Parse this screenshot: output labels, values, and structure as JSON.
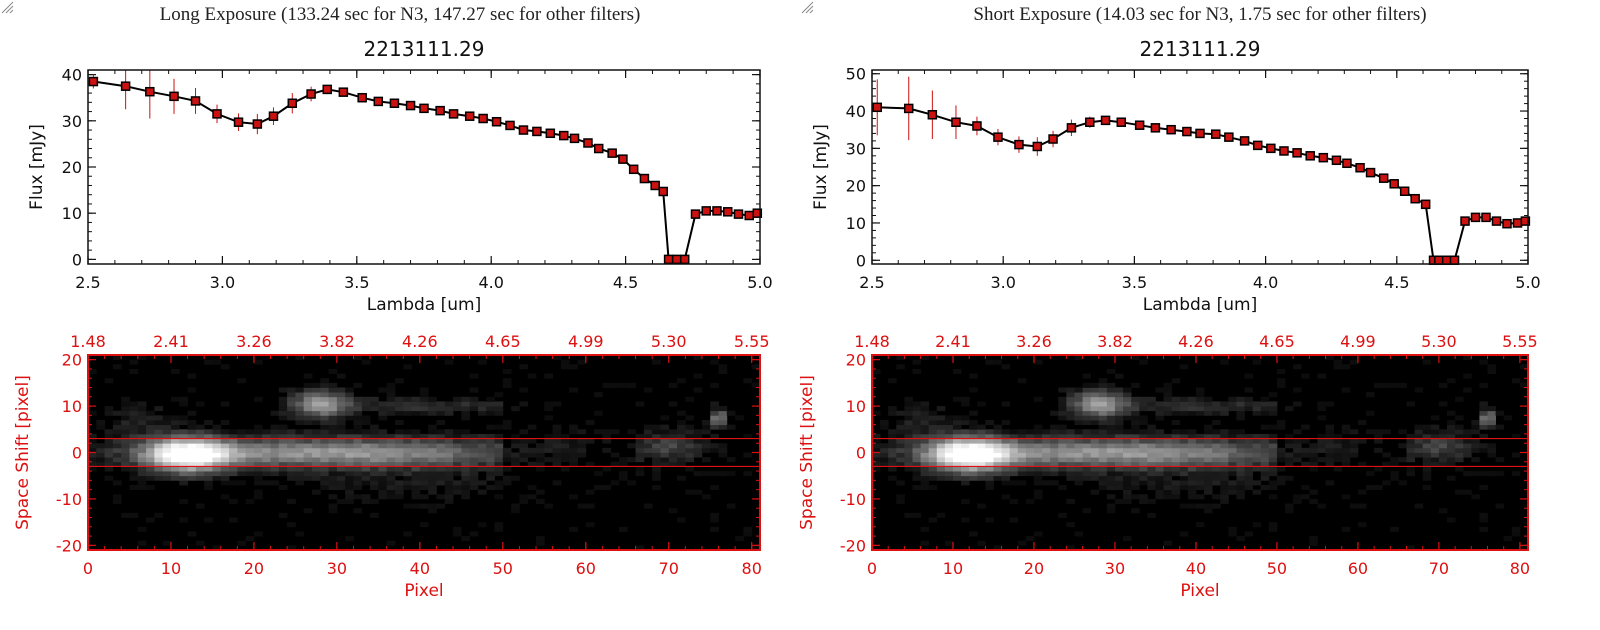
{
  "colors": {
    "accent": "#dd1111",
    "axis": "#111111",
    "marker_fill": "#cc1111",
    "marker_edge": "#000000"
  },
  "panels": [
    {
      "id": "long",
      "caption": "Long Exposure (133.24 sec for N3, 147.27 sec for other filters)"
    },
    {
      "id": "short",
      "caption": "Short Exposure (14.03 sec for N3, 1.75 sec for other filters)"
    }
  ],
  "chart_data": [
    {
      "type": "line",
      "title": "2213111.29",
      "xlabel": "Lambda [um]",
      "ylabel": "Flux [mJy]",
      "xlim": [
        2.5,
        5.0
      ],
      "ylim": [
        -1,
        41
      ],
      "xticks": [
        2.5,
        3.0,
        3.5,
        4.0,
        4.5,
        5.0
      ],
      "yticks": [
        0,
        10,
        20,
        30,
        40
      ],
      "x": [
        2.52,
        2.64,
        2.73,
        2.82,
        2.9,
        2.98,
        3.06,
        3.13,
        3.19,
        3.26,
        3.33,
        3.39,
        3.45,
        3.52,
        3.58,
        3.64,
        3.7,
        3.75,
        3.81,
        3.86,
        3.92,
        3.97,
        4.02,
        4.07,
        4.12,
        4.17,
        4.22,
        4.27,
        4.31,
        4.36,
        4.4,
        4.45,
        4.49,
        4.53,
        4.57,
        4.61,
        4.64,
        4.66,
        4.69,
        4.72,
        4.76,
        4.8,
        4.84,
        4.88,
        4.92,
        4.96,
        4.99
      ],
      "y": [
        38.5,
        37.5,
        36.3,
        35.3,
        34.3,
        31.5,
        29.7,
        29.3,
        31.0,
        33.8,
        35.8,
        36.8,
        36.2,
        35.0,
        34.2,
        33.8,
        33.3,
        32.7,
        32.2,
        31.5,
        31.0,
        30.5,
        29.8,
        29.0,
        28.0,
        27.7,
        27.3,
        26.8,
        26.2,
        25.2,
        24.0,
        23.0,
        21.7,
        19.5,
        17.5,
        16.0,
        14.7,
        0.0,
        0.0,
        0.0,
        9.8,
        10.5,
        10.5,
        10.3,
        9.8,
        9.5,
        10.0
      ],
      "yerr": [
        1.5,
        5.0,
        5.8,
        3.8,
        2.8,
        2.0,
        1.9,
        2.2,
        1.9,
        2.2,
        1.6,
        0.8,
        0.6,
        0.5,
        0.5,
        0.5,
        0.4,
        0.4,
        0.4,
        0.4,
        0.4,
        0.4,
        0.4,
        0.4,
        0.4,
        0.4,
        0.4,
        0.4,
        0.4,
        0.4,
        0.4,
        0.4,
        0.4,
        0.4,
        0.4,
        0.4,
        0.4,
        0.4,
        0.4,
        0.4,
        0.4,
        0.4,
        0.4,
        0.4,
        0.4,
        0.4,
        0.4
      ]
    },
    {
      "type": "heatmap",
      "xlabel": "Pixel",
      "ylabel": "Space Shift [pixel]",
      "xlim": [
        0,
        81
      ],
      "ylim": [
        -21,
        21
      ],
      "xticks": [
        0,
        10,
        20,
        30,
        40,
        50,
        60,
        70,
        80
      ],
      "yticks": [
        -20,
        -10,
        0,
        10,
        20
      ],
      "top_tick_labels": [
        "1.48",
        "2.41",
        "3.26",
        "3.82",
        "4.26",
        "4.65",
        "4.99",
        "5.30",
        "5.55"
      ],
      "aperture_y": [
        -3,
        3
      ],
      "sources": [
        {
          "x": 12,
          "y": -0.5,
          "peak": 1.0,
          "sx": 3.5,
          "sy": 2.6
        },
        {
          "x": 30,
          "y": 0.0,
          "peak": 0.6,
          "sx": 16,
          "sy": 2.3
        },
        {
          "x": 28,
          "y": 10.5,
          "peak": 0.55,
          "sx": 2.4,
          "sy": 2.2
        },
        {
          "x": 40,
          "y": 10.0,
          "peak": 0.2,
          "sx": 9,
          "sy": 1.2
        },
        {
          "x": 58,
          "y": 2.5,
          "peak": 0.18,
          "sx": 2.5,
          "sy": 2
        },
        {
          "x": 70,
          "y": 1.5,
          "peak": 0.25,
          "sx": 3,
          "sy": 2.3
        },
        {
          "x": 76,
          "y": 7.5,
          "peak": 0.5,
          "sx": 0.7,
          "sy": 1.4
        },
        {
          "x": 6,
          "y": 7,
          "peak": 0.12,
          "sx": 3,
          "sy": 3
        },
        {
          "x": 40,
          "y": -6,
          "peak": 0.08,
          "sx": 10,
          "sy": 3
        }
      ]
    },
    {
      "type": "line",
      "title": "2213111.29",
      "xlabel": "Lambda [um]",
      "ylabel": "Flux [mJy]",
      "xlim": [
        2.5,
        5.0
      ],
      "ylim": [
        -1,
        51
      ],
      "xticks": [
        2.5,
        3.0,
        3.5,
        4.0,
        4.5,
        5.0
      ],
      "yticks": [
        0,
        10,
        20,
        30,
        40,
        50
      ],
      "x": [
        2.52,
        2.64,
        2.73,
        2.82,
        2.9,
        2.98,
        3.06,
        3.13,
        3.19,
        3.26,
        3.33,
        3.39,
        3.45,
        3.52,
        3.58,
        3.64,
        3.7,
        3.75,
        3.81,
        3.86,
        3.92,
        3.97,
        4.02,
        4.07,
        4.12,
        4.17,
        4.22,
        4.27,
        4.31,
        4.36,
        4.4,
        4.45,
        4.49,
        4.53,
        4.57,
        4.61,
        4.64,
        4.66,
        4.69,
        4.72,
        4.76,
        4.8,
        4.84,
        4.88,
        4.92,
        4.96,
        4.99
      ],
      "y": [
        41.0,
        40.7,
        39.0,
        37.0,
        36.0,
        33.0,
        31.0,
        30.5,
        32.5,
        35.5,
        37.0,
        37.5,
        37.0,
        36.2,
        35.5,
        35.0,
        34.5,
        34.0,
        33.8,
        33.0,
        32.0,
        30.8,
        30.0,
        29.3,
        28.8,
        28.0,
        27.5,
        26.8,
        26.0,
        24.8,
        23.5,
        22.0,
        20.5,
        18.5,
        16.5,
        15.0,
        0.0,
        0.0,
        0.0,
        0.0,
        10.5,
        11.5,
        11.5,
        10.5,
        9.8,
        10.0,
        10.5
      ],
      "yerr": [
        7.5,
        8.5,
        6.5,
        4.5,
        2.5,
        2.2,
        2.2,
        2.5,
        2.2,
        2.2,
        1.5,
        0.9,
        0.6,
        0.5,
        0.5,
        0.5,
        0.5,
        0.5,
        0.5,
        0.5,
        0.5,
        0.5,
        0.5,
        0.5,
        0.5,
        0.5,
        0.5,
        0.5,
        0.5,
        0.5,
        0.5,
        0.5,
        0.5,
        0.5,
        0.5,
        0.5,
        0.5,
        0.5,
        0.5,
        0.5,
        0.5,
        0.5,
        0.5,
        0.5,
        0.5,
        0.5,
        0.5
      ]
    },
    {
      "type": "heatmap",
      "xlabel": "Pixel",
      "ylabel": "Space Shift [pixel]",
      "xlim": [
        0,
        81
      ],
      "ylim": [
        -21,
        21
      ],
      "xticks": [
        0,
        10,
        20,
        30,
        40,
        50,
        60,
        70,
        80
      ],
      "yticks": [
        -20,
        -10,
        0,
        10,
        20
      ],
      "top_tick_labels": [
        "1.48",
        "2.41",
        "3.26",
        "3.82",
        "4.26",
        "4.65",
        "4.99",
        "5.30",
        "5.55"
      ],
      "aperture_y": [
        -3,
        3
      ],
      "sources": [
        {
          "x": 12,
          "y": -0.5,
          "peak": 1.0,
          "sx": 3.5,
          "sy": 2.6
        },
        {
          "x": 30,
          "y": 0.0,
          "peak": 0.6,
          "sx": 16,
          "sy": 2.3
        },
        {
          "x": 28,
          "y": 10.5,
          "peak": 0.55,
          "sx": 2.4,
          "sy": 2.2
        },
        {
          "x": 40,
          "y": 10.0,
          "peak": 0.2,
          "sx": 9,
          "sy": 1.2
        },
        {
          "x": 58,
          "y": 2.5,
          "peak": 0.18,
          "sx": 2.5,
          "sy": 2
        },
        {
          "x": 70,
          "y": 1.5,
          "peak": 0.25,
          "sx": 3,
          "sy": 2.3
        },
        {
          "x": 76,
          "y": 7.5,
          "peak": 0.5,
          "sx": 0.7,
          "sy": 1.4
        },
        {
          "x": 6,
          "y": 7,
          "peak": 0.12,
          "sx": 3,
          "sy": 3
        },
        {
          "x": 40,
          "y": -6,
          "peak": 0.08,
          "sx": 10,
          "sy": 3
        }
      ]
    }
  ]
}
